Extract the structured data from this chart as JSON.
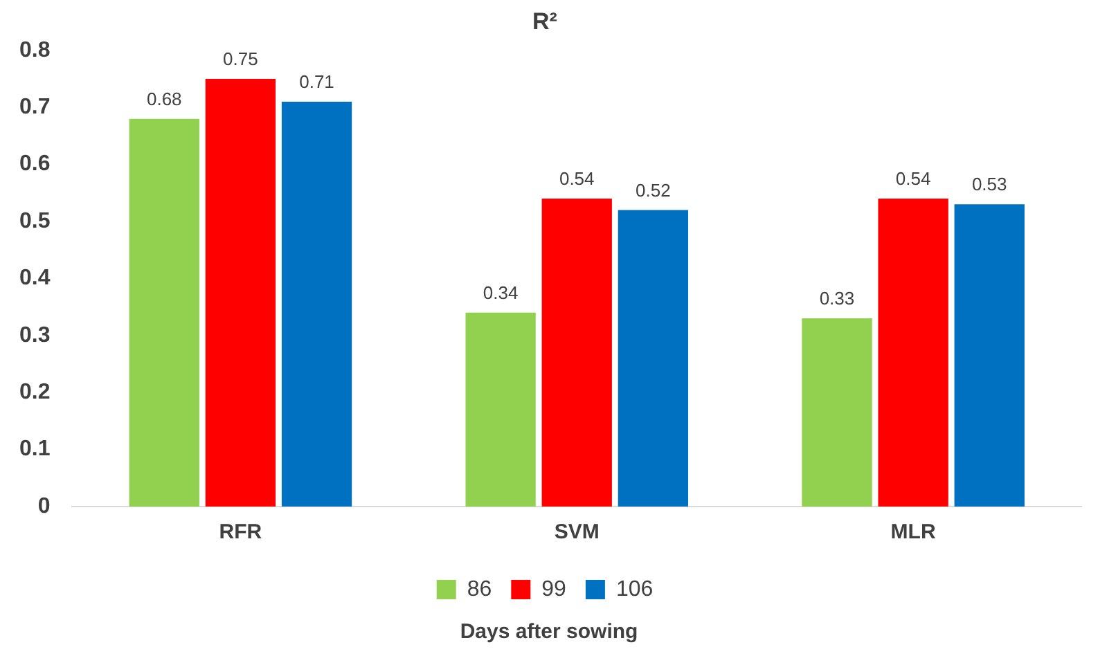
{
  "chart_data": {
    "type": "bar",
    "title": "R²",
    "xlabel": "Days after sowing",
    "categories": [
      "RFR",
      "SVM",
      "MLR"
    ],
    "series": [
      {
        "name": "86",
        "color": "#92d050",
        "values": [
          0.68,
          0.34,
          0.33
        ]
      },
      {
        "name": "99",
        "color": "#ff0000",
        "values": [
          0.75,
          0.54,
          0.54
        ]
      },
      {
        "name": "106",
        "color": "#0070c0",
        "values": [
          0.71,
          0.52,
          0.53
        ]
      }
    ],
    "ylim": [
      0,
      0.8
    ],
    "yticks": [
      0,
      0.1,
      0.2,
      0.3,
      0.4,
      0.5,
      0.6,
      0.7,
      0.8
    ],
    "grid": false,
    "legend": "bottom",
    "data_labels": true
  }
}
